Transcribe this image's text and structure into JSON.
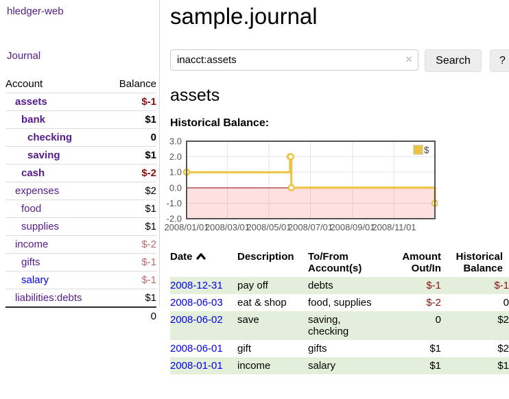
{
  "app": {
    "brand": "hledger-web"
  },
  "sidebar": {
    "nav": {
      "journal": "Journal"
    },
    "accounts_table": {
      "headers": {
        "account": "Account",
        "balance": "Balance"
      },
      "rows": [
        {
          "name": "assets",
          "indent": 1,
          "balance": "$-1",
          "in_acct": true,
          "value_style": "neg-strong"
        },
        {
          "name": "bank",
          "indent": 2,
          "balance": "$1",
          "in_acct": true,
          "value_style": "normal"
        },
        {
          "name": "checking",
          "indent": 3,
          "balance": "0",
          "in_acct": true,
          "value_style": "normal"
        },
        {
          "name": "saving",
          "indent": 3,
          "balance": "$1",
          "in_acct": true,
          "value_style": "normal"
        },
        {
          "name": "cash",
          "indent": 2,
          "balance": "$-2",
          "in_acct": true,
          "value_style": "neg-strong"
        },
        {
          "name": "expenses",
          "indent": 1,
          "balance": "$2",
          "in_acct": false,
          "value_style": "normal"
        },
        {
          "name": "food",
          "indent": 2,
          "balance": "$1",
          "in_acct": false,
          "value_style": "normal"
        },
        {
          "name": "supplies",
          "indent": 2,
          "balance": "$1",
          "in_acct": false,
          "value_style": "normal"
        },
        {
          "name": "income",
          "indent": 1,
          "balance": "$-2",
          "in_acct": false,
          "value_style": "neg-soft"
        },
        {
          "name": "gifts",
          "indent": 2,
          "balance": "$-1",
          "in_acct": false,
          "value_style": "neg-soft"
        },
        {
          "name": "salary",
          "indent": 2,
          "balance": "$-1",
          "in_acct": false,
          "value_style": "neg-soft",
          "link_state": "unvisited"
        },
        {
          "name": "liabilities:debts",
          "indent": 1,
          "balance": "$1",
          "in_acct": false,
          "value_style": "normal"
        }
      ],
      "total": "0"
    }
  },
  "header": {
    "title": "sample.journal"
  },
  "search": {
    "value": "inacct:assets",
    "clear_icon": "×",
    "search_label": "Search",
    "help_label": "?"
  },
  "account_page": {
    "title": "assets",
    "chart_label": "Historical Balance:"
  },
  "chart_data": {
    "type": "line",
    "title": "Historical Balance",
    "x_unit": "days since 2008-01-01",
    "xlim": [
      0,
      365
    ],
    "ylim": [
      -2,
      3
    ],
    "yticks": [
      {
        "v": 3,
        "label": "3.0"
      },
      {
        "v": 2,
        "label": "2.0"
      },
      {
        "v": 1,
        "label": "1.0"
      },
      {
        "v": 0,
        "label": "0.0"
      },
      {
        "v": -1,
        "label": "-1.0"
      },
      {
        "v": -2,
        "label": "-2.0"
      }
    ],
    "xticks": [
      {
        "v": 0,
        "label": "2008/01/01"
      },
      {
        "v": 60,
        "label": "2008/03/01"
      },
      {
        "v": 121,
        "label": "2008/05/01"
      },
      {
        "v": 182,
        "label": "2008/07/01"
      },
      {
        "v": 244,
        "label": "2008/09/01"
      },
      {
        "v": 305,
        "label": "2008/11/01"
      }
    ],
    "series": [
      {
        "name": "$",
        "color": "#edc240",
        "step": true,
        "point_dates": [
          "2008-01-01",
          "2008-06-01",
          "2008-06-02",
          "2008-06-03",
          "2008-12-31"
        ],
        "points": [
          [
            0,
            1
          ],
          [
            152,
            2
          ],
          [
            153,
            2
          ],
          [
            154,
            0
          ],
          [
            365,
            -1
          ]
        ]
      }
    ],
    "legend_position": "top-right",
    "grid": true,
    "grid_color": "#e6e6e6",
    "border_color": "#545454",
    "axis_label_color": "#545454",
    "zero_line_color": "#8b0000",
    "negative_region_fill": "rgba(255,0,0,0.12)"
  },
  "register_table": {
    "headers": {
      "date": "Date",
      "description": "Description",
      "accounts": "To/From Account(s)",
      "amount": "Amount Out/In",
      "balance": "Historical Balance"
    },
    "sort": {
      "column": "date",
      "direction": "ascending"
    },
    "rows": [
      {
        "date": "2008-12-31",
        "description": "pay off",
        "accounts": "debts",
        "amount": "$-1",
        "balance": "$-1",
        "amount_style": "neg-strong",
        "balance_style": "neg-strong"
      },
      {
        "date": "2008-06-03",
        "description": "eat & shop",
        "accounts": "food, supplies",
        "amount": "$-2",
        "balance": "0",
        "amount_style": "neg-strong",
        "balance_style": "normal"
      },
      {
        "date": "2008-06-02",
        "description": "save",
        "accounts": "saving, checking",
        "amount": "0",
        "balance": "$2",
        "amount_style": "normal",
        "balance_style": "normal"
      },
      {
        "date": "2008-06-01",
        "description": "gift",
        "accounts": "gifts",
        "amount": "$1",
        "balance": "$2",
        "amount_style": "normal",
        "balance_style": "normal"
      },
      {
        "date": "2008-01-01",
        "description": "income",
        "accounts": "salary",
        "amount": "$1",
        "balance": "$1",
        "amount_style": "normal",
        "balance_style": "normal"
      }
    ]
  },
  "colors": {
    "visited_link_purple": "#551a8b",
    "unvisited_link_blue": "#0000ee",
    "negative_strong_red": "#8b1010",
    "negative_soft_rose": "#bc6b6b",
    "row_stripe_green": "#e3efdb",
    "series_gold": "#edc240"
  }
}
